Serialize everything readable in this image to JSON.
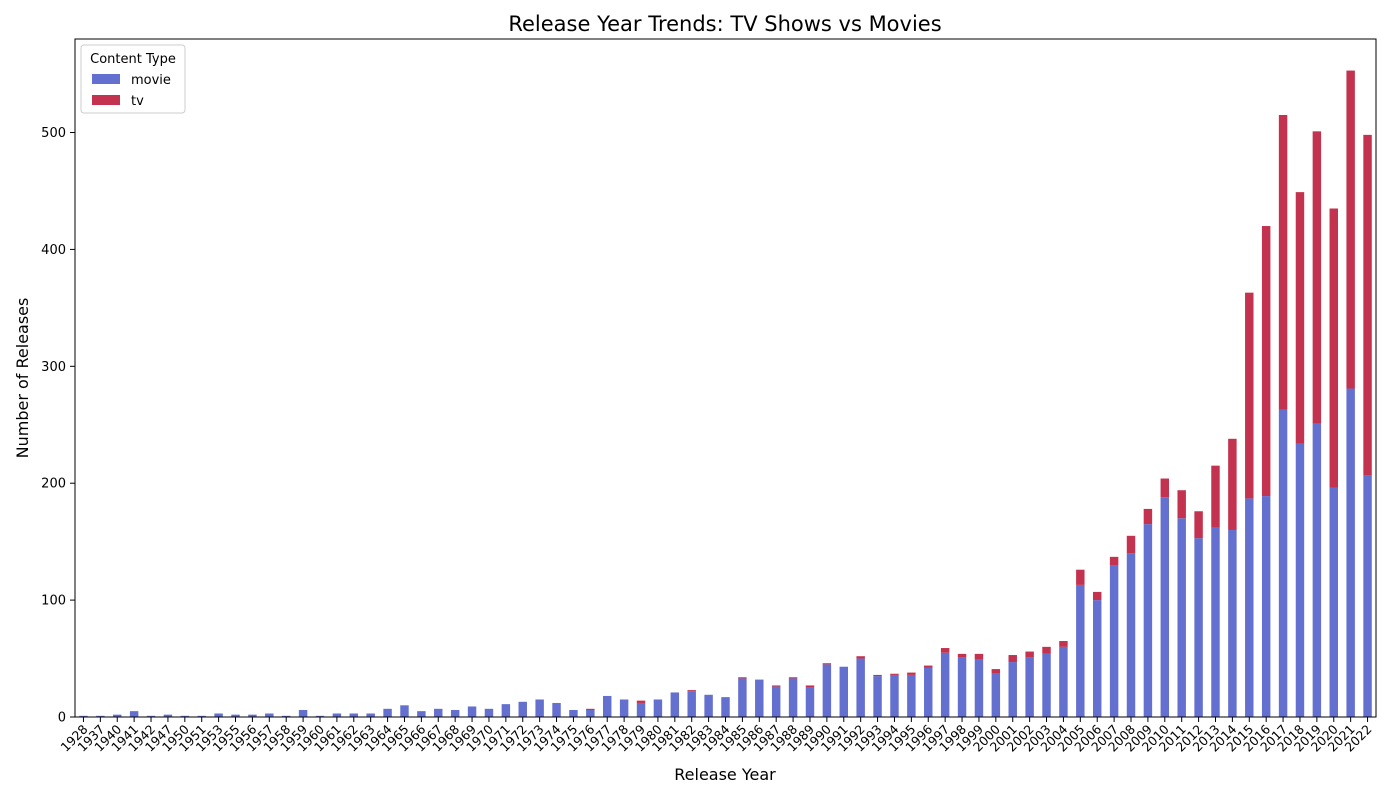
{
  "chart_data": {
    "type": "bar",
    "stacked": true,
    "title": "Release Year Trends: TV Shows vs Movies",
    "xlabel": "Release Year",
    "ylabel": "Number of Releases",
    "ylim": [
      0,
      580
    ],
    "yticks": [
      0,
      100,
      200,
      300,
      400,
      500
    ],
    "grid": false,
    "legend": {
      "title": "Content Type",
      "placement": "top-left"
    },
    "categories": [
      "1928",
      "1937",
      "1940",
      "1941",
      "1942",
      "1947",
      "1950",
      "1951",
      "1953",
      "1955",
      "1956",
      "1957",
      "1958",
      "1959",
      "1960",
      "1961",
      "1962",
      "1963",
      "1964",
      "1965",
      "1966",
      "1967",
      "1968",
      "1969",
      "1970",
      "1971",
      "1972",
      "1973",
      "1974",
      "1975",
      "1976",
      "1977",
      "1978",
      "1979",
      "1980",
      "1981",
      "1982",
      "1983",
      "1984",
      "1985",
      "1986",
      "1987",
      "1988",
      "1989",
      "1990",
      "1991",
      "1992",
      "1993",
      "1994",
      "1995",
      "1996",
      "1997",
      "1998",
      "1999",
      "2000",
      "2001",
      "2002",
      "2003",
      "2004",
      "2005",
      "2006",
      "2007",
      "2008",
      "2009",
      "2010",
      "2011",
      "2012",
      "2013",
      "2014",
      "2015",
      "2016",
      "2017",
      "2018",
      "2019",
      "2020",
      "2021",
      "2022"
    ],
    "series": [
      {
        "name": "movie",
        "color": "#6470cf",
        "values": [
          1,
          1,
          2,
          5,
          1,
          2,
          1,
          1,
          3,
          2,
          2,
          3,
          1,
          6,
          1,
          3,
          3,
          3,
          7,
          10,
          5,
          7,
          6,
          9,
          7,
          11,
          13,
          15,
          12,
          6,
          6,
          18,
          15,
          12,
          15,
          21,
          22,
          19,
          17,
          33,
          32,
          26,
          33,
          25,
          45,
          43,
          50,
          35,
          36,
          36,
          42,
          55,
          51,
          49,
          37,
          47,
          51,
          54,
          60,
          113,
          100,
          130,
          140,
          165,
          188,
          170,
          153,
          162,
          160,
          187,
          189,
          263,
          234,
          251,
          196,
          281,
          207
        ],
        "title": ""
      },
      {
        "name": "tv",
        "color": "#c3334f",
        "values": [
          0,
          0,
          0,
          0,
          0,
          0,
          0,
          0,
          0,
          0,
          0,
          0,
          0,
          0,
          0,
          0,
          0,
          0,
          0,
          0,
          0,
          0,
          0,
          0,
          0,
          0,
          0,
          0,
          0,
          0,
          1,
          0,
          0,
          2,
          0,
          0,
          1,
          0,
          0,
          1,
          0,
          1,
          1,
          2,
          1,
          0,
          2,
          1,
          1,
          2,
          2,
          4,
          3,
          5,
          4,
          6,
          5,
          6,
          5,
          13,
          7,
          7,
          15,
          13,
          16,
          24,
          23,
          53,
          78,
          176,
          231,
          252,
          215,
          250,
          239,
          272,
          291
        ]
      }
    ]
  }
}
